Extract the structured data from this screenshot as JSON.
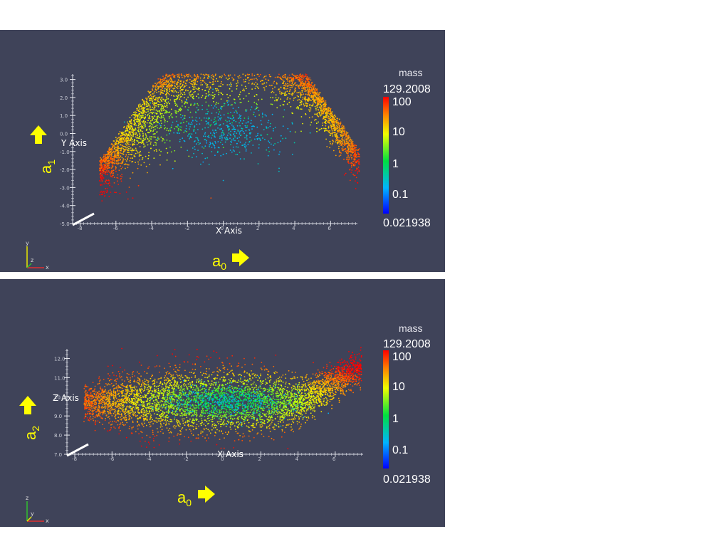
{
  "chart_data": [
    {
      "type": "scatter",
      "x_axis_title": "X Axis",
      "y_axis_title": "Y Axis",
      "x_ticks": [
        "-8",
        "-6",
        "-4",
        "-2",
        "0",
        "2",
        "4",
        "6"
      ],
      "y_ticks": [
        "3.0",
        "2.0",
        "1.0",
        "0.0",
        "-1.0",
        "-2.0",
        "-3.0",
        "-4.0",
        "-5.0"
      ],
      "xlim": [
        -8.5,
        7.5
      ],
      "ylim": [
        -5,
        3.3
      ],
      "colorbar": {
        "title": "mass",
        "scale": "log",
        "max": "129.2008",
        "min": "0.021938",
        "labels": [
          "100",
          "10",
          "1",
          "0.1"
        ]
      },
      "annotations": {
        "x_variable": "a0",
        "y_variable": "a1"
      },
      "orientation_axes": [
        "y",
        "z",
        "x"
      ],
      "description_colors": {
        "background": "#3f4359",
        "low": "#0000ff",
        "high": "#ff0000"
      }
    },
    {
      "type": "scatter",
      "x_axis_title": "X Axis",
      "y_axis_title": "Z Axis",
      "x_ticks": [
        "-8",
        "-6",
        "-4",
        "-2",
        "0",
        "2",
        "4",
        "6"
      ],
      "y_ticks": [
        "12.0",
        "11.0",
        "10.0",
        "9.0",
        "8.0",
        "7.0"
      ],
      "xlim": [
        -8.5,
        7.5
      ],
      "ylim": [
        7,
        12.5
      ],
      "colorbar": {
        "title": "mass",
        "scale": "log",
        "max": "129.2008",
        "min": "0.021938",
        "labels": [
          "100",
          "10",
          "1",
          "0.1"
        ]
      },
      "annotations": {
        "x_variable": "a0",
        "y_variable": "a2"
      },
      "orientation_axes": [
        "z",
        "y",
        "x"
      ],
      "description_colors": {
        "background": "#3f4359",
        "low": "#0000ff",
        "high": "#ff0000"
      }
    }
  ]
}
